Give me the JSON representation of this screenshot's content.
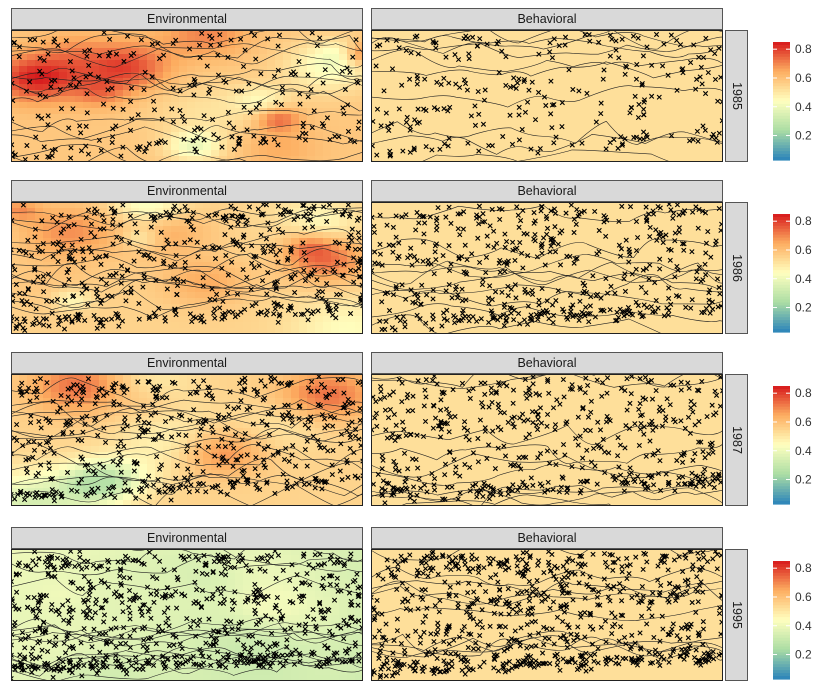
{
  "chart_data": {
    "type": "heatmap",
    "facet_columns": [
      "Environmental",
      "Behavioral"
    ],
    "facet_rows": [
      "1985",
      "1986",
      "1987",
      "1995"
    ],
    "colorbar": {
      "ticks": [
        "0.8",
        "0.6",
        "0.4",
        "0.2"
      ],
      "tick_values": [
        0.8,
        0.6,
        0.4,
        0.2
      ],
      "range": [
        0.03,
        0.85
      ],
      "palette": [
        "#2b83ba",
        "#abdda4",
        "#ffffbf",
        "#fdae61",
        "#d7191c"
      ]
    },
    "panels": [
      {
        "year": "1985",
        "model": "Environmental",
        "base_value": 0.58,
        "variation": "high",
        "points": "sparse"
      },
      {
        "year": "1985",
        "model": "Behavioral",
        "base_value": 0.52,
        "variation": "none",
        "points": "sparse"
      },
      {
        "year": "1986",
        "model": "Environmental",
        "base_value": 0.55,
        "variation": "high",
        "points": "dense"
      },
      {
        "year": "1986",
        "model": "Behavioral",
        "base_value": 0.52,
        "variation": "none",
        "points": "dense"
      },
      {
        "year": "1987",
        "model": "Environmental",
        "base_value": 0.55,
        "variation": "high",
        "points": "dense"
      },
      {
        "year": "1987",
        "model": "Behavioral",
        "base_value": 0.52,
        "variation": "none",
        "points": "dense"
      },
      {
        "year": "1995",
        "model": "Environmental",
        "base_value": 0.37,
        "variation": "low",
        "points": "very dense"
      },
      {
        "year": "1995",
        "model": "Behavioral",
        "base_value": 0.52,
        "variation": "none",
        "points": "very dense"
      }
    ],
    "grid": false,
    "legend_placement": "right",
    "point_marker": "x",
    "xlabel": "",
    "ylabel": ""
  }
}
